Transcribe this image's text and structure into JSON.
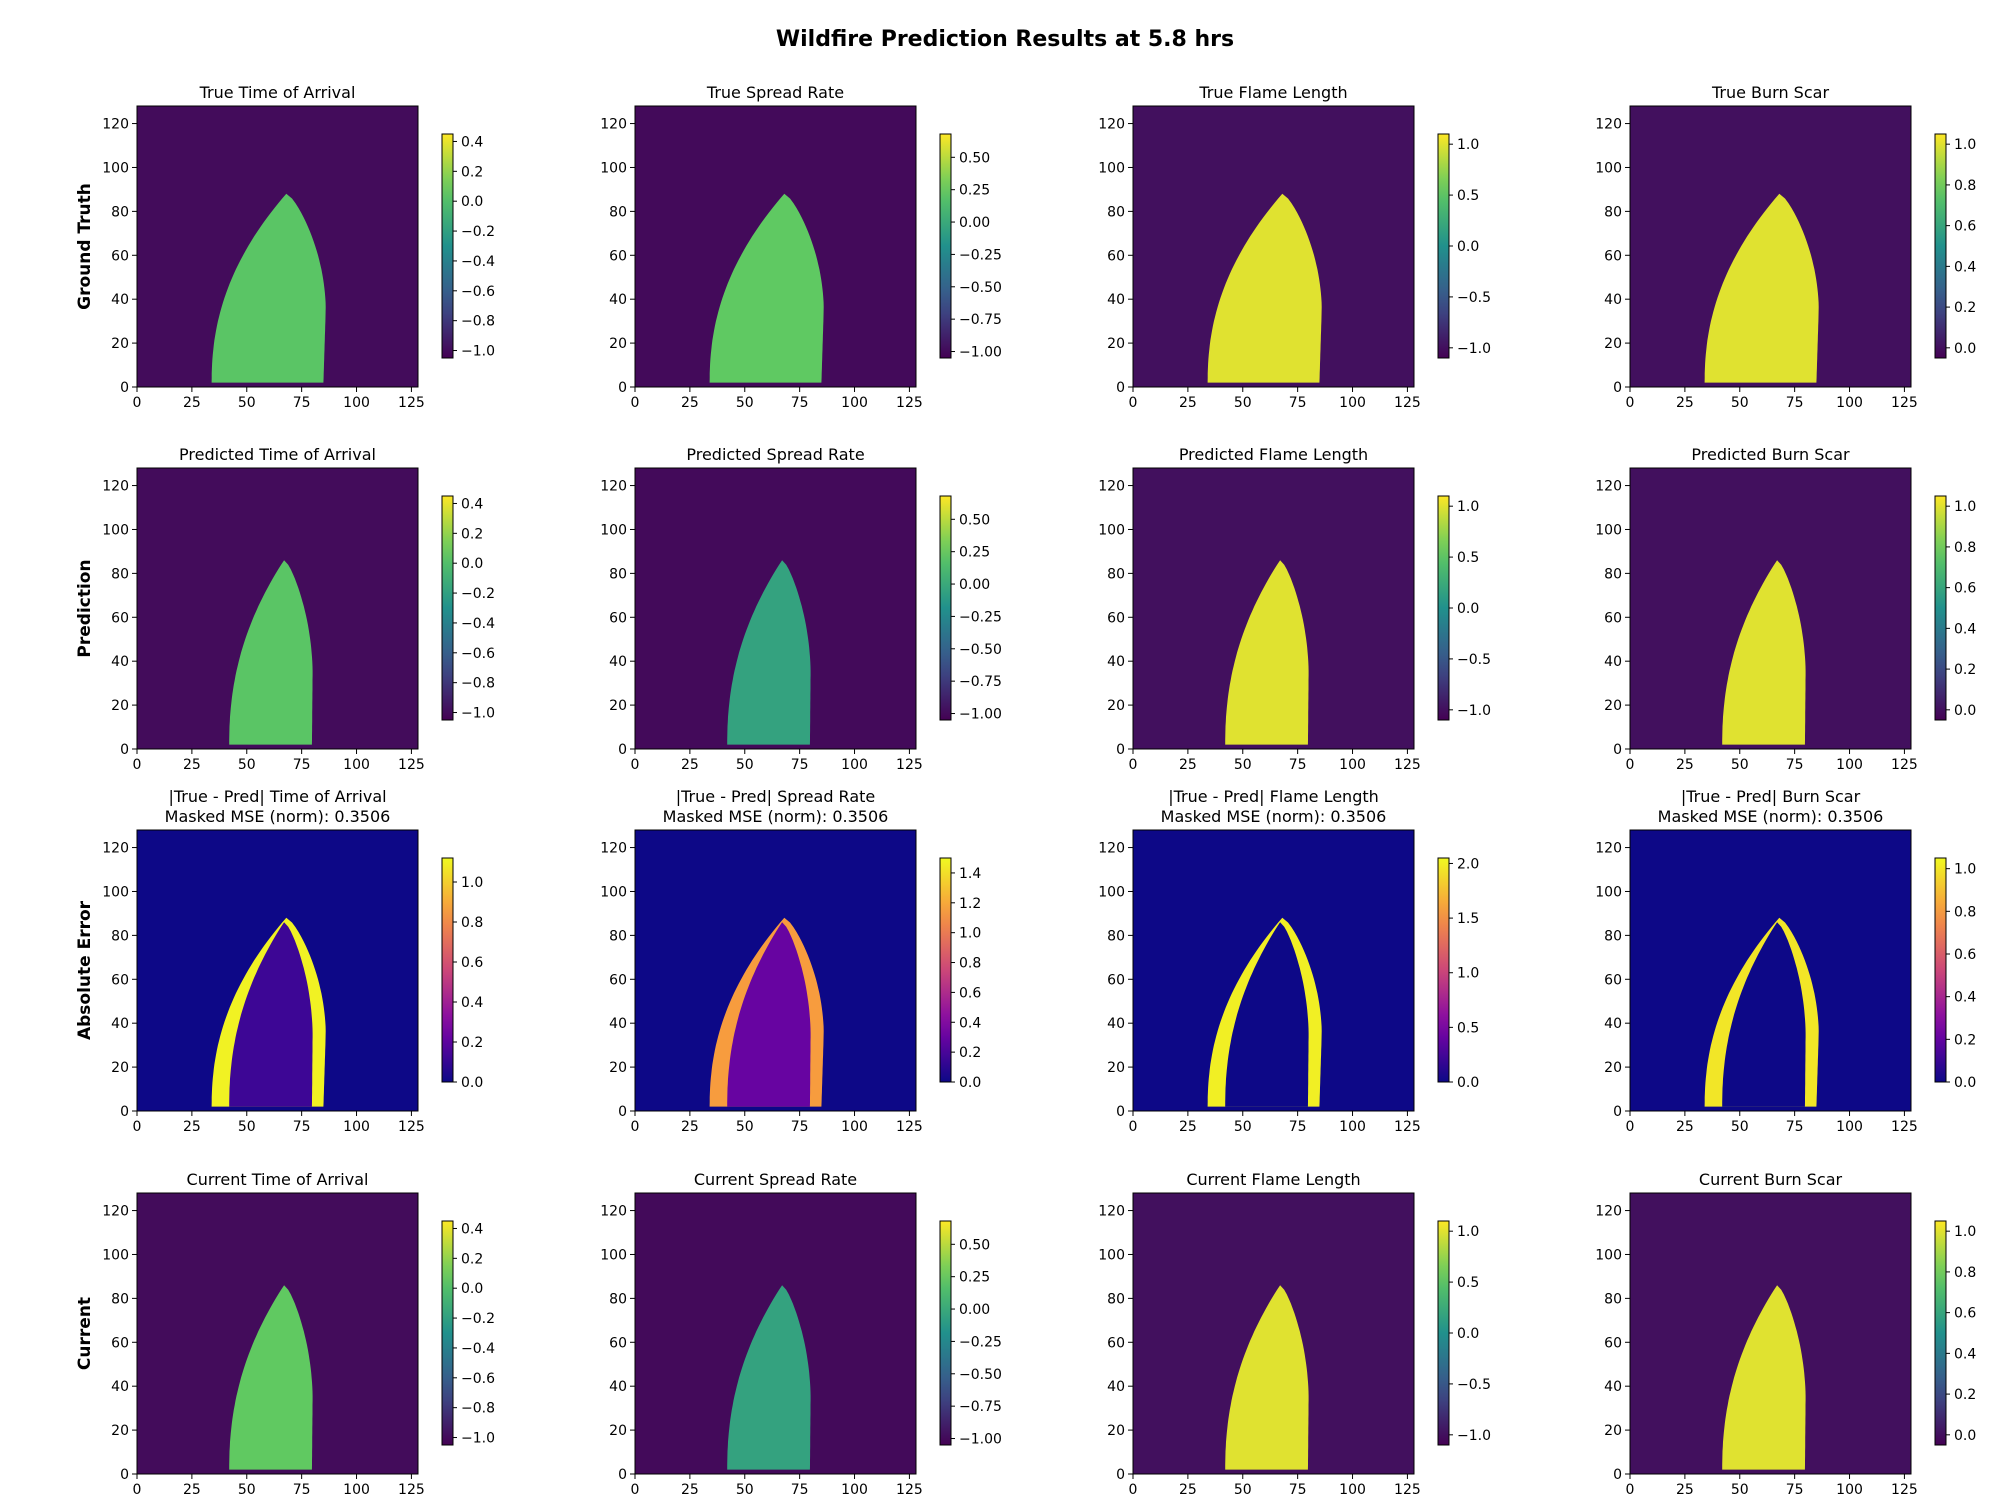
{
  "figure_title": "Wildfire Prediction Results at 5.8 hrs",
  "row_labels": [
    "Ground Truth",
    "Prediction",
    "Absolute Error",
    "Current"
  ],
  "x_ticks": [
    0,
    25,
    50,
    75,
    100,
    125
  ],
  "y_ticks": [
    0,
    20,
    40,
    60,
    80,
    100,
    120
  ],
  "axis_extent": [
    0,
    128
  ],
  "colormaps": {
    "viridis": [
      "#440154",
      "#3b528b",
      "#21918c",
      "#5ec962",
      "#fde725"
    ],
    "plasma": [
      "#0d0887",
      "#7e03a8",
      "#cc4778",
      "#f89540",
      "#f0f921"
    ]
  },
  "chart_data": [
    {
      "type": "heatmap",
      "row": 0,
      "col": 0,
      "title": "True Time of Arrival",
      "cmap": "viridis",
      "vmin": -1.05,
      "vmax": 0.45,
      "cbar_ticks": [
        0.4,
        0.2,
        0.0,
        -0.2,
        -0.4,
        -0.6,
        -0.8,
        -1.0
      ],
      "cbar_labels": [
        "0.4",
        "0.2",
        "0.0",
        "−0.2",
        "−0.4",
        "−0.6",
        "−0.8",
        "−1.0"
      ],
      "background": -1.0,
      "fill": 0.05,
      "shape": "truth"
    },
    {
      "type": "heatmap",
      "row": 0,
      "col": 1,
      "title": "True Spread Rate",
      "cmap": "viridis",
      "vmin": -1.05,
      "vmax": 0.68,
      "cbar_ticks": [
        0.5,
        0.25,
        0.0,
        -0.25,
        -0.5,
        -0.75,
        -1.0
      ],
      "cbar_labels": [
        "0.50",
        "0.25",
        "0.00",
        "−0.25",
        "−0.50",
        "−0.75",
        "−1.00"
      ],
      "background": -1.0,
      "fill": 0.25,
      "shape": "truth"
    },
    {
      "type": "heatmap",
      "row": 0,
      "col": 2,
      "title": "True Flame Length",
      "cmap": "viridis",
      "vmin": -1.1,
      "vmax": 1.1,
      "cbar_ticks": [
        1.0,
        0.5,
        0.0,
        -0.5,
        -1.0
      ],
      "cbar_labels": [
        "1.0",
        "0.5",
        "0.0",
        "−0.5",
        "−1.0"
      ],
      "background": -1.0,
      "fill": 1.0,
      "shape": "truth"
    },
    {
      "type": "heatmap",
      "row": 0,
      "col": 3,
      "title": "True Burn Scar",
      "cmap": "viridis",
      "vmin": -0.05,
      "vmax": 1.05,
      "cbar_ticks": [
        1.0,
        0.8,
        0.6,
        0.4,
        0.2,
        0.0
      ],
      "cbar_labels": [
        "1.0",
        "0.8",
        "0.6",
        "0.4",
        "0.2",
        "0.0"
      ],
      "background": 0.0,
      "fill": 1.0,
      "shape": "truth"
    },
    {
      "type": "heatmap",
      "row": 1,
      "col": 0,
      "title": "Predicted Time of Arrival",
      "cmap": "viridis",
      "vmin": -1.05,
      "vmax": 0.45,
      "cbar_ticks": [
        0.4,
        0.2,
        0.0,
        -0.2,
        -0.4,
        -0.6,
        -0.8,
        -1.0
      ],
      "cbar_labels": [
        "0.4",
        "0.2",
        "0.0",
        "−0.2",
        "−0.4",
        "−0.6",
        "−0.8",
        "−1.0"
      ],
      "background": -1.0,
      "fill": 0.05,
      "shape": "pred"
    },
    {
      "type": "heatmap",
      "row": 1,
      "col": 1,
      "title": "Predicted Spread Rate",
      "cmap": "viridis",
      "vmin": -1.05,
      "vmax": 0.68,
      "cbar_ticks": [
        0.5,
        0.25,
        0.0,
        -0.25,
        -0.5,
        -0.75,
        -1.0
      ],
      "cbar_labels": [
        "0.50",
        "0.25",
        "0.00",
        "−0.25",
        "−0.50",
        "−0.75",
        "−1.00"
      ],
      "background": -1.0,
      "fill": -0.05,
      "shape": "pred"
    },
    {
      "type": "heatmap",
      "row": 1,
      "col": 2,
      "title": "Predicted Flame Length",
      "cmap": "viridis",
      "vmin": -1.1,
      "vmax": 1.1,
      "cbar_ticks": [
        1.0,
        0.5,
        0.0,
        -0.5,
        -1.0
      ],
      "cbar_labels": [
        "1.0",
        "0.5",
        "0.0",
        "−0.5",
        "−1.0"
      ],
      "background": -1.0,
      "fill": 1.0,
      "shape": "pred"
    },
    {
      "type": "heatmap",
      "row": 1,
      "col": 3,
      "title": "Predicted Burn Scar",
      "cmap": "viridis",
      "vmin": -0.05,
      "vmax": 1.05,
      "cbar_ticks": [
        1.0,
        0.8,
        0.6,
        0.4,
        0.2,
        0.0
      ],
      "cbar_labels": [
        "1.0",
        "0.8",
        "0.6",
        "0.4",
        "0.2",
        "0.0"
      ],
      "background": 0.0,
      "fill": 1.0,
      "shape": "pred"
    },
    {
      "type": "heatmap",
      "row": 2,
      "col": 0,
      "title": "|True - Pred| Time of Arrival",
      "subtitle": "Masked MSE (norm): 0.3506",
      "cmap": "plasma",
      "vmin": 0.0,
      "vmax": 1.12,
      "cbar_ticks": [
        1.0,
        0.8,
        0.6,
        0.4,
        0.2,
        0.0
      ],
      "cbar_labels": [
        "1.0",
        "0.8",
        "0.6",
        "0.4",
        "0.2",
        "0.0"
      ],
      "background": 0.0,
      "fill": 0.12,
      "rim": 1.1,
      "shape": "error"
    },
    {
      "type": "heatmap",
      "row": 2,
      "col": 1,
      "title": "|True - Pred| Spread Rate",
      "subtitle": "Masked MSE (norm): 0.3506",
      "cmap": "plasma",
      "vmin": 0.0,
      "vmax": 1.5,
      "cbar_ticks": [
        1.4,
        1.2,
        1.0,
        0.8,
        0.6,
        0.4,
        0.2,
        0.0
      ],
      "cbar_labels": [
        "1.4",
        "1.2",
        "1.0",
        "0.8",
        "0.6",
        "0.4",
        "0.2",
        "0.0"
      ],
      "background": 0.0,
      "fill": 0.3,
      "rim": 1.15,
      "shape": "error"
    },
    {
      "type": "heatmap",
      "row": 2,
      "col": 2,
      "title": "|True - Pred| Flame Length",
      "subtitle": "Masked MSE (norm): 0.3506",
      "cmap": "plasma",
      "vmin": 0.0,
      "vmax": 2.05,
      "cbar_ticks": [
        2.0,
        1.5,
        1.0,
        0.5,
        0.0
      ],
      "cbar_labels": [
        "2.0",
        "1.5",
        "1.0",
        "0.5",
        "0.0"
      ],
      "background": 0.0,
      "fill": 0.0,
      "rim": 2.0,
      "shape": "error"
    },
    {
      "type": "heatmap",
      "row": 2,
      "col": 3,
      "title": "|True - Pred| Burn Scar",
      "subtitle": "Masked MSE (norm): 0.3506",
      "cmap": "plasma",
      "vmin": 0.0,
      "vmax": 1.05,
      "cbar_ticks": [
        1.0,
        0.8,
        0.6,
        0.4,
        0.2,
        0.0
      ],
      "cbar_labels": [
        "1.0",
        "0.8",
        "0.6",
        "0.4",
        "0.2",
        "0.0"
      ],
      "background": 0.0,
      "fill": 0.0,
      "rim": 1.0,
      "shape": "error"
    },
    {
      "type": "heatmap",
      "row": 3,
      "col": 0,
      "title": "Current Time of Arrival",
      "cmap": "viridis",
      "vmin": -1.05,
      "vmax": 0.45,
      "cbar_ticks": [
        0.4,
        0.2,
        0.0,
        -0.2,
        -0.4,
        -0.6,
        -0.8,
        -1.0
      ],
      "cbar_labels": [
        "0.4",
        "0.2",
        "0.0",
        "−0.2",
        "−0.4",
        "−0.6",
        "−0.8",
        "−1.0"
      ],
      "background": -1.0,
      "fill": 0.08,
      "shape": "current"
    },
    {
      "type": "heatmap",
      "row": 3,
      "col": 1,
      "title": "Current Spread Rate",
      "cmap": "viridis",
      "vmin": -1.05,
      "vmax": 0.68,
      "cbar_ticks": [
        0.5,
        0.25,
        0.0,
        -0.25,
        -0.5,
        -0.75,
        -1.0
      ],
      "cbar_labels": [
        "0.50",
        "0.25",
        "0.00",
        "−0.25",
        "−0.50",
        "−0.75",
        "−1.00"
      ],
      "background": -1.0,
      "fill": -0.05,
      "shape": "current"
    },
    {
      "type": "heatmap",
      "row": 3,
      "col": 2,
      "title": "Current Flame Length",
      "cmap": "viridis",
      "vmin": -1.1,
      "vmax": 1.1,
      "cbar_ticks": [
        1.0,
        0.5,
        0.0,
        -0.5,
        -1.0
      ],
      "cbar_labels": [
        "1.0",
        "0.5",
        "0.0",
        "−0.5",
        "−1.0"
      ],
      "background": -1.0,
      "fill": 1.0,
      "shape": "current"
    },
    {
      "type": "heatmap",
      "row": 3,
      "col": 3,
      "title": "Current Burn Scar",
      "cmap": "viridis",
      "vmin": -0.05,
      "vmax": 1.05,
      "cbar_ticks": [
        1.0,
        0.8,
        0.6,
        0.4,
        0.2,
        0.0
      ],
      "cbar_labels": [
        "1.0",
        "0.8",
        "0.6",
        "0.4",
        "0.2",
        "0.0"
      ],
      "background": 0.0,
      "fill": 1.0,
      "shape": "current"
    }
  ]
}
